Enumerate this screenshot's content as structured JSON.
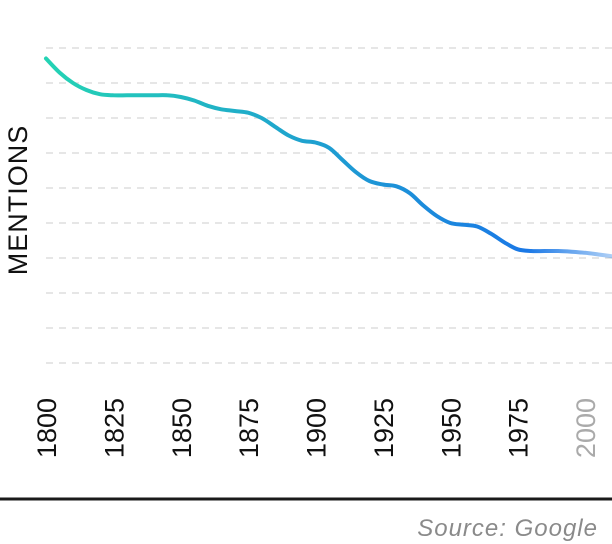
{
  "chart_data": {
    "type": "line",
    "title": "",
    "xlabel": "",
    "ylabel": "MENTIONS",
    "x_ticks": [
      "1800",
      "1825",
      "1850",
      "1875",
      "1900",
      "1925",
      "1950",
      "1975",
      "2000"
    ],
    "x_tick_colors": [
      "#111111",
      "#111111",
      "#111111",
      "#111111",
      "#111111",
      "#111111",
      "#111111",
      "#111111",
      "#aaaaaa"
    ],
    "xlim": [
      1800,
      2010
    ],
    "ylim": [
      0,
      9
    ],
    "grid": true,
    "line_gradient": [
      "#24d3b4",
      "#1a78e6"
    ],
    "series": [
      {
        "x": [
          1800,
          1805,
          1810,
          1815,
          1820,
          1825,
          1830,
          1835,
          1840,
          1845,
          1850,
          1855,
          1860,
          1865,
          1870,
          1875,
          1880,
          1885,
          1890,
          1895,
          1900,
          1905,
          1910,
          1915,
          1920,
          1925,
          1930,
          1935,
          1940,
          1945,
          1950,
          1955,
          1960,
          1965,
          1970,
          1975,
          1980,
          1985,
          1990,
          1995,
          2000,
          2005,
          2010
        ],
        "y": [
          8.7,
          8.3,
          8.0,
          7.8,
          7.68,
          7.65,
          7.65,
          7.65,
          7.65,
          7.65,
          7.6,
          7.5,
          7.35,
          7.25,
          7.2,
          7.15,
          7.0,
          6.75,
          6.5,
          6.35,
          6.3,
          6.15,
          5.8,
          5.45,
          5.2,
          5.1,
          5.05,
          4.85,
          4.5,
          4.2,
          4.0,
          3.95,
          3.9,
          3.7,
          3.45,
          3.25,
          3.2,
          3.2,
          3.2,
          3.18,
          3.15,
          3.1,
          3.05
        ]
      }
    ]
  },
  "footer": {
    "source": "Source: Google"
  }
}
